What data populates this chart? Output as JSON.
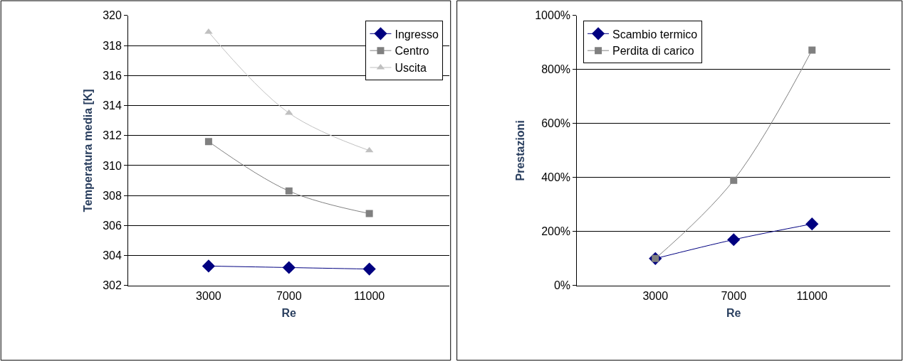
{
  "chart_data": [
    {
      "type": "line",
      "xlabel": "Re",
      "ylabel": "Temperatura media [K]",
      "xlim": [
        -1000,
        15000
      ],
      "xticks": [
        3000,
        7000,
        11000
      ],
      "ylim": [
        302,
        320
      ],
      "yticks": [
        302,
        304,
        306,
        308,
        310,
        312,
        314,
        316,
        318,
        320
      ],
      "grid": "y",
      "legend": "top right",
      "x": [
        3000,
        7000,
        11000
      ],
      "series": [
        {
          "name": "Ingresso",
          "color": "#000080",
          "marker": "diamond",
          "values": [
            303.3,
            303.2,
            303.1
          ]
        },
        {
          "name": "Centro",
          "color": "#808080",
          "marker": "square",
          "values": [
            311.6,
            308.3,
            306.8
          ]
        },
        {
          "name": "Uscita",
          "color": "#c0c0c0",
          "marker": "triangle",
          "values": [
            318.9,
            313.5,
            311.0
          ]
        }
      ]
    },
    {
      "type": "line",
      "xlabel": "Re",
      "ylabel": "Prestazioni",
      "xlim": [
        -1000,
        15000
      ],
      "xticks": [
        3000,
        7000,
        11000
      ],
      "ylim": [
        0,
        1000
      ],
      "yticks": [
        {
          "value": 0,
          "label": "0%"
        },
        {
          "value": 200,
          "label": "200%"
        },
        {
          "value": 400,
          "label": "400%"
        },
        {
          "value": 600,
          "label": "600%"
        },
        {
          "value": 800,
          "label": "800%"
        },
        {
          "value": 1000,
          "label": "1000%"
        }
      ],
      "grid": "y",
      "legend": "top left",
      "x": [
        3000,
        7000,
        11000
      ],
      "series": [
        {
          "name": "Scambio termico",
          "color": "#000080",
          "marker": "diamond",
          "values": [
            100,
            170,
            228
          ]
        },
        {
          "name": "Perdita di carico",
          "color": "#808080",
          "marker": "square",
          "values": [
            100,
            390,
            872
          ]
        }
      ]
    }
  ]
}
